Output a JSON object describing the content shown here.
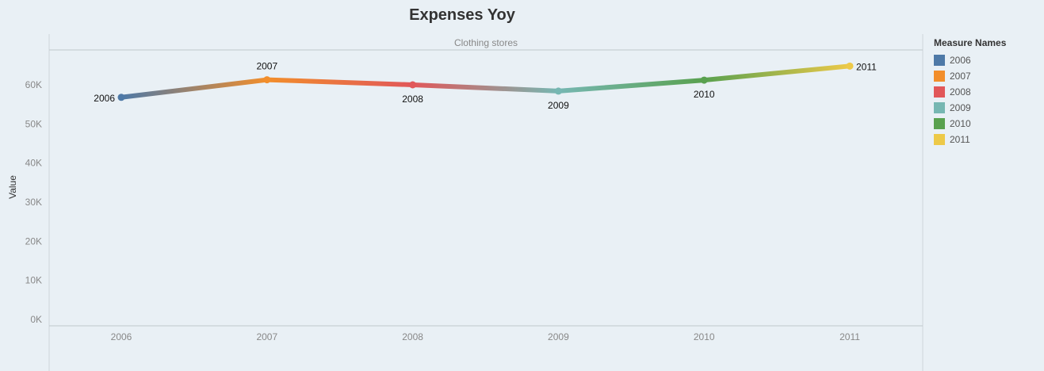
{
  "colors": {
    "2006": "#4e79a7",
    "2007": "#f28e2b",
    "2008": "#e15759",
    "2009": "#76b7b2",
    "2010": "#59a14f",
    "2011": "#edc948",
    "axis_text": "#888888",
    "grid": "#bfc7cc",
    "background": "#e9f0f5"
  },
  "chart_data": {
    "type": "line",
    "title": "Expenses Yoy",
    "panel_header": "Clothing stores",
    "xlabel": "",
    "ylabel": "Value",
    "ylim": [
      0,
      68000
    ],
    "y_ticks": [
      0,
      10000,
      20000,
      30000,
      40000,
      50000,
      60000
    ],
    "y_tick_labels": [
      "0K",
      "10K",
      "20K",
      "30K",
      "40K",
      "50K",
      "60K"
    ],
    "categories": [
      "2006",
      "2007",
      "2008",
      "2009",
      "2010",
      "2011"
    ],
    "values": [
      56800,
      61300,
      60000,
      58400,
      61200,
      64800
    ],
    "data_labels": [
      "2006",
      "2007",
      "2008",
      "2009",
      "2010",
      "2011"
    ],
    "label_positions": [
      "left",
      "above",
      "below",
      "below",
      "below",
      "right"
    ],
    "legend": {
      "title": "Measure Names",
      "entries": [
        "2006",
        "2007",
        "2008",
        "2009",
        "2010",
        "2011"
      ]
    }
  }
}
